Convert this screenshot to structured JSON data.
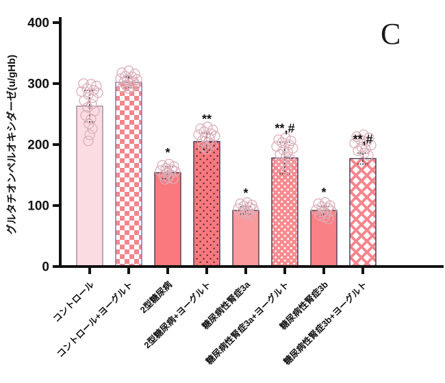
{
  "panel_label": "C",
  "colors": {
    "background": "#ffffff",
    "axis": "#111111",
    "tick_label": "#111111",
    "error_bar": "#3a3a3a",
    "scatter_stroke": "#dcaeb8",
    "annotation": "#111111"
  },
  "chart_data": {
    "type": "bar",
    "title": "",
    "xlabel": "",
    "ylabel": "グルタチオンペルオキシダーゼ(u/gHb)",
    "ylim": [
      0,
      400
    ],
    "yticks": [
      0,
      100,
      200,
      300,
      400
    ],
    "grid": false,
    "legend": "none",
    "categories": [
      "コントロール",
      "コントロール+ヨーグルト",
      "2型糖尿病",
      "2型糖尿病+ヨーグルト",
      "糖尿病性腎症3a",
      "糖尿病性腎症3a+ヨーグルト",
      "糖尿病性腎症3b",
      "糖尿病性腎症3b+ヨーグルト"
    ],
    "values": [
      263,
      302,
      154,
      205,
      92,
      178,
      92,
      177
    ],
    "errors": [
      26,
      9,
      10,
      14,
      6,
      26,
      7,
      9
    ],
    "annotations": [
      "",
      "",
      "*",
      "**",
      "*",
      "**,#",
      "*",
      "**,#"
    ],
    "bar_styles": [
      {
        "pattern": "solid",
        "fill": "#fbdce2",
        "stroke": "#a3879d"
      },
      {
        "pattern": "checker",
        "fill": "#f2868d",
        "stroke": "#7b6e9e"
      },
      {
        "pattern": "solid",
        "fill": "#f9797e",
        "stroke": "#4a3b50"
      },
      {
        "pattern": "dots-dark",
        "fill": "#f9797e",
        "stroke": "#3f3353",
        "accent": "#33202e"
      },
      {
        "pattern": "solid",
        "fill": "#fa9a9d",
        "stroke": "#4a3b50"
      },
      {
        "pattern": "dots-white",
        "fill": "#fa8a8f",
        "stroke": "#3f3353",
        "accent": "#ffffff"
      },
      {
        "pattern": "solid",
        "fill": "#f98084",
        "stroke": "#4a3b50"
      },
      {
        "pattern": "diamond",
        "fill": "#f5858d",
        "stroke": "#3f3353",
        "accent": "#ffffff"
      }
    ],
    "points": [
      [
        [
          -9,
          300
        ],
        [
          2,
          299
        ],
        [
          10,
          296
        ],
        [
          -4,
          292
        ],
        [
          6,
          289
        ],
        [
          -12,
          287
        ],
        [
          12,
          285
        ],
        [
          -2,
          282
        ],
        [
          5,
          277
        ],
        [
          -8,
          272
        ],
        [
          3,
          266
        ],
        [
          -3,
          261
        ],
        [
          7,
          255
        ],
        [
          -6,
          248
        ],
        [
          2,
          242
        ],
        [
          -1,
          234
        ],
        [
          4,
          226
        ],
        [
          0,
          216
        ],
        [
          -2,
          206
        ]
      ],
      [
        [
          -10,
          318
        ],
        [
          0,
          321
        ],
        [
          9,
          316
        ],
        [
          -5,
          312
        ],
        [
          5,
          311
        ],
        [
          -12,
          308
        ],
        [
          12,
          307
        ],
        [
          -2,
          305
        ],
        [
          7,
          303
        ],
        [
          -7,
          302
        ],
        [
          2,
          300
        ],
        [
          10,
          298
        ],
        [
          -4,
          297
        ],
        [
          4,
          295
        ],
        [
          -9,
          294
        ],
        [
          0,
          292
        ]
      ],
      [
        [
          -8,
          166
        ],
        [
          2,
          168
        ],
        [
          9,
          164
        ],
        [
          -3,
          161
        ],
        [
          6,
          159
        ],
        [
          -11,
          157
        ],
        [
          11,
          156
        ],
        [
          -1,
          154
        ],
        [
          4,
          151
        ],
        [
          -6,
          149
        ],
        [
          1,
          146
        ],
        [
          8,
          144
        ],
        [
          -4,
          143
        ]
      ],
      [
        [
          -9,
          226
        ],
        [
          1,
          229
        ],
        [
          9,
          224
        ],
        [
          -4,
          221
        ],
        [
          6,
          218
        ],
        [
          -12,
          216
        ],
        [
          12,
          214
        ],
        [
          -2,
          212
        ],
        [
          4,
          209
        ],
        [
          -7,
          206
        ],
        [
          2,
          203
        ],
        [
          8,
          200
        ],
        [
          -5,
          197
        ],
        [
          0,
          193
        ]
      ],
      [
        [
          -8,
          103
        ],
        [
          2,
          105
        ],
        [
          9,
          101
        ],
        [
          -3,
          99
        ],
        [
          6,
          97
        ],
        [
          -11,
          95
        ],
        [
          11,
          94
        ],
        [
          -1,
          92
        ],
        [
          4,
          90
        ],
        [
          -6,
          88
        ],
        [
          1,
          86
        ],
        [
          7,
          84
        ]
      ],
      [
        [
          -9,
          208
        ],
        [
          1,
          211
        ],
        [
          9,
          206
        ],
        [
          -4,
          203
        ],
        [
          6,
          200
        ],
        [
          -12,
          197
        ],
        [
          12,
          194
        ],
        [
          -2,
          191
        ],
        [
          4,
          188
        ],
        [
          -7,
          184
        ],
        [
          2,
          180
        ],
        [
          8,
          176
        ],
        [
          -5,
          171
        ],
        [
          0,
          166
        ],
        [
          3,
          160
        ]
      ],
      [
        [
          -8,
          103
        ],
        [
          2,
          105
        ],
        [
          9,
          100
        ],
        [
          -3,
          98
        ],
        [
          6,
          96
        ],
        [
          -11,
          93
        ],
        [
          11,
          91
        ],
        [
          -1,
          89
        ],
        [
          4,
          87
        ],
        [
          -6,
          84
        ],
        [
          1,
          81
        ],
        [
          7,
          78
        ]
      ],
      [
        [
          -9,
          213
        ],
        [
          1,
          216
        ],
        [
          9,
          211
        ],
        [
          -4,
          208
        ],
        [
          6,
          205
        ],
        [
          -12,
          202
        ],
        [
          12,
          199
        ],
        [
          -2,
          196
        ],
        [
          4,
          193
        ],
        [
          -7,
          190
        ],
        [
          2,
          186
        ],
        [
          8,
          182
        ]
      ]
    ]
  }
}
